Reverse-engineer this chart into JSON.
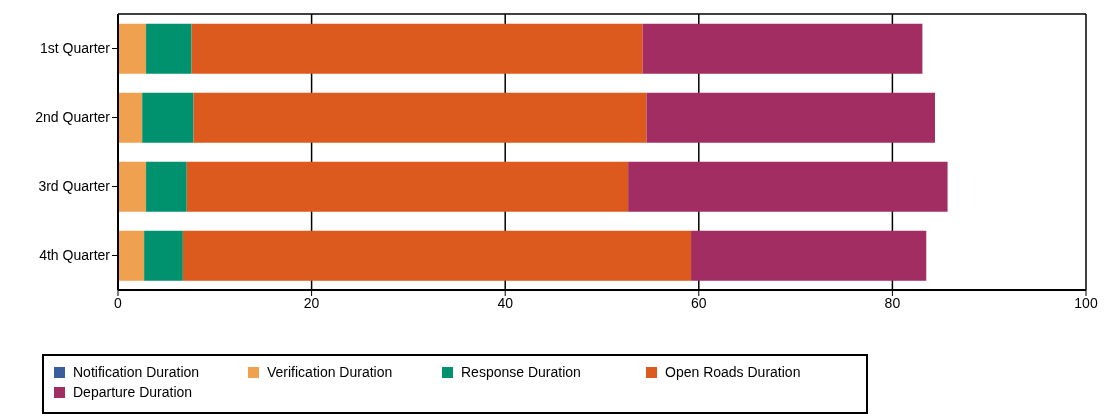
{
  "chart_data": {
    "type": "bar",
    "orientation": "horizontal",
    "stacked": true,
    "categories": [
      "1st Quarter",
      "2nd Quarter",
      "3rd Quarter",
      "4th Quarter"
    ],
    "series": [
      {
        "name": "Notification Duration",
        "color": "#3a5d9c",
        "values": [
          0,
          0,
          0,
          0
        ]
      },
      {
        "name": "Verification Duration",
        "color": "#f0a150",
        "values": [
          2.9,
          2.5,
          2.9,
          2.7
        ]
      },
      {
        "name": "Response Duration",
        "color": "#00916e",
        "values": [
          4.7,
          5.3,
          4.2,
          4.0
        ]
      },
      {
        "name": "Open Roads Duration",
        "color": "#dd5a1f",
        "values": [
          46.6,
          46.8,
          45.6,
          52.5
        ]
      },
      {
        "name": "Departure Duration",
        "color": "#a22d62",
        "values": [
          28.9,
          29.8,
          33.0,
          24.3
        ]
      }
    ],
    "xlim": [
      0,
      100
    ],
    "xticks": [
      0,
      20,
      40,
      60,
      80,
      100
    ],
    "grid": "x",
    "legend": "bottom"
  }
}
